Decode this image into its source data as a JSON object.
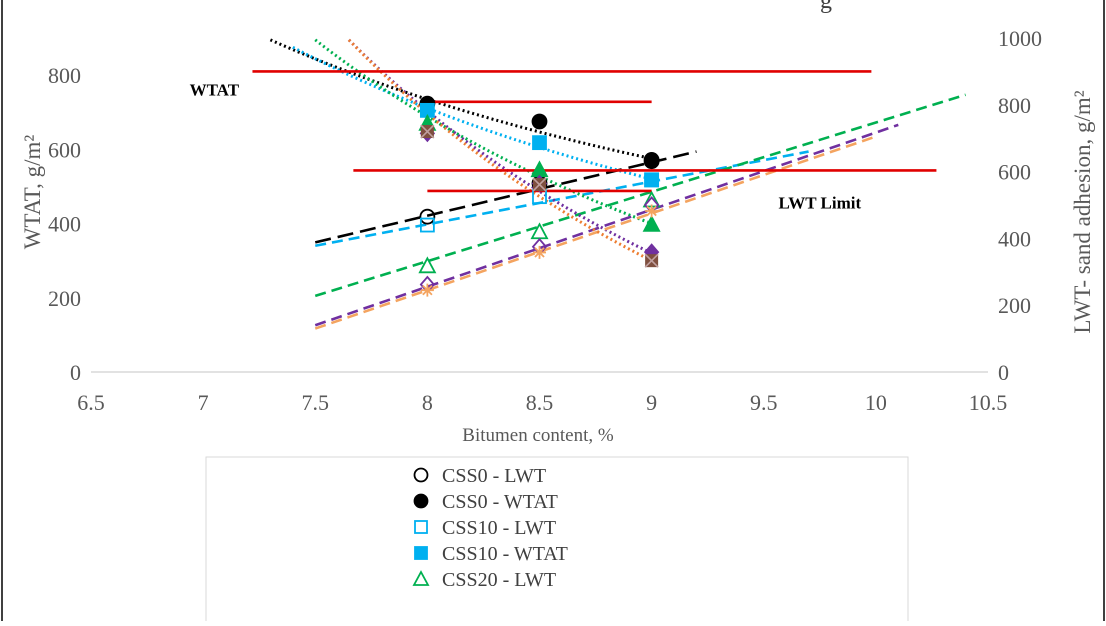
{
  "chart_data": {
    "type": "scatter",
    "title": "",
    "title_partial": "g",
    "xlabel": "Bitumen content, %",
    "ylabel_left": "WTAT, g/m²",
    "ylabel_right": "LWT- sand adhesion, g/m²",
    "xlim": [
      6.5,
      10.5
    ],
    "xticks": [
      "6.5",
      "7",
      "7.5",
      "8",
      "8.5",
      "9",
      "9.5",
      "10",
      "10.5"
    ],
    "y_left_lim": [
      0,
      900
    ],
    "y_left_ticks": [
      "0",
      "200",
      "400",
      "600",
      "800"
    ],
    "y_right_lim": [
      0,
      1000
    ],
    "y_right_ticks": [
      "0",
      "200",
      "400",
      "600",
      "800",
      "1000"
    ],
    "annotations": [
      {
        "text": "WTAT",
        "x": 7.05,
        "y_left": 745
      },
      {
        "text": "LWT Limit",
        "x": 9.75,
        "y_left": 440
      }
    ],
    "limit_lines": [
      {
        "x": [
          7.22,
          9.98
        ],
        "y_left": 810,
        "color": "#e00000"
      },
      {
        "x": [
          8.0,
          9.0
        ],
        "y_left": 728,
        "color": "#e00000"
      },
      {
        "x": [
          7.67,
          10.27
        ],
        "y_left": 543,
        "color": "#e00000"
      },
      {
        "x": [
          8.0,
          9.0
        ],
        "y_left": 488,
        "color": "#e00000"
      }
    ],
    "series": [
      {
        "name": "CSS0 - LWT",
        "axis": "right",
        "marker": "circle-open",
        "color": "#000000",
        "x": [
          8.0,
          8.5,
          9.0
        ],
        "y": [
          465,
          565,
          635
        ],
        "trend": {
          "style": "long-dash",
          "x": [
            7.5,
            9.2
          ],
          "y": [
            388,
            660
          ]
        }
      },
      {
        "name": "CSS0 - WTAT",
        "axis": "left",
        "marker": "circle-filled",
        "color": "#000000",
        "x": [
          8.0,
          8.5,
          9.0
        ],
        "y": [
          723,
          675,
          568
        ],
        "trend": {
          "style": "dot",
          "x": [
            7.3,
            9.0
          ],
          "y": [
            895,
            575
          ]
        }
      },
      {
        "name": "CSS10 - LWT",
        "axis": "right",
        "marker": "square-open",
        "color": "#00b0f0",
        "x": [
          8.0,
          8.5,
          9.0
        ],
        "y": [
          440,
          525,
          575
        ],
        "trend": {
          "style": "dash",
          "x": [
            7.5,
            9.7
          ],
          "y": [
            378,
            660
          ]
        }
      },
      {
        "name": "CSS10 - WTAT",
        "axis": "left",
        "marker": "square-filled",
        "color": "#00b0f0",
        "x": [
          8.0,
          8.5,
          9.0
        ],
        "y": [
          705,
          618,
          518
        ],
        "trend": {
          "style": "dot",
          "x": [
            7.4,
            9.0
          ],
          "y": [
            875,
            520
          ]
        }
      },
      {
        "name": "CSS20 - LWT",
        "axis": "right",
        "marker": "triangle-open",
        "color": "#00b050",
        "x": [
          8.0,
          8.5,
          9.0
        ],
        "y": [
          318,
          420,
          515
        ],
        "trend": {
          "style": "dash",
          "x": [
            7.5,
            10.4
          ],
          "y": [
            228,
            830
          ]
        }
      },
      {
        "name": "CSS20 - WTAT",
        "axis": "left",
        "marker": "triangle-filled",
        "color": "#00b050",
        "x": [
          8.0,
          8.5,
          9.0
        ],
        "y": [
          670,
          545,
          398
        ],
        "trend": {
          "style": "dot",
          "x": [
            7.5,
            9.0
          ],
          "y": [
            895,
            400
          ]
        }
      },
      {
        "name": "",
        "axis": "right",
        "marker": "diamond-open",
        "color": "#7030a0",
        "x": [
          8.0,
          8.5,
          9.0
        ],
        "y": [
          262,
          375,
          500
        ],
        "trend": {
          "style": "dash",
          "x": [
            7.5,
            10.1
          ],
          "y": [
            140,
            740
          ]
        }
      },
      {
        "name": "",
        "axis": "left",
        "marker": "diamond-filled",
        "color": "#7030a0",
        "x": [
          8.0,
          8.5,
          9.0
        ],
        "y": [
          643,
          508,
          323
        ],
        "trend": {
          "style": "dot",
          "x": [
            7.65,
            9.0
          ],
          "y": [
            895,
            320
          ]
        }
      },
      {
        "name": "",
        "axis": "right",
        "marker": "star",
        "color": "#f4a460",
        "x": [
          8.0,
          8.5,
          9.0
        ],
        "y": [
          245,
          358,
          482
        ],
        "trend": {
          "style": "dash",
          "x": [
            7.5,
            10.0
          ],
          "y": [
            130,
            705
          ]
        }
      },
      {
        "name": "",
        "axis": "left",
        "marker": "x-filled",
        "color": "#7f4f3f",
        "x": [
          8.0,
          8.5,
          9.0
        ],
        "y": [
          648,
          505,
          300
        ],
        "trend": {
          "style": "dot",
          "x": [
            7.65,
            9.0
          ],
          "y": [
            895,
            300
          ],
          "color": "#ed7d31"
        }
      }
    ],
    "legend": {
      "placement": "bottom",
      "entries": [
        "CSS0 - LWT",
        "CSS0 - WTAT",
        "CSS10 - LWT",
        "CSS10 - WTAT",
        "CSS20 - LWT"
      ]
    }
  }
}
